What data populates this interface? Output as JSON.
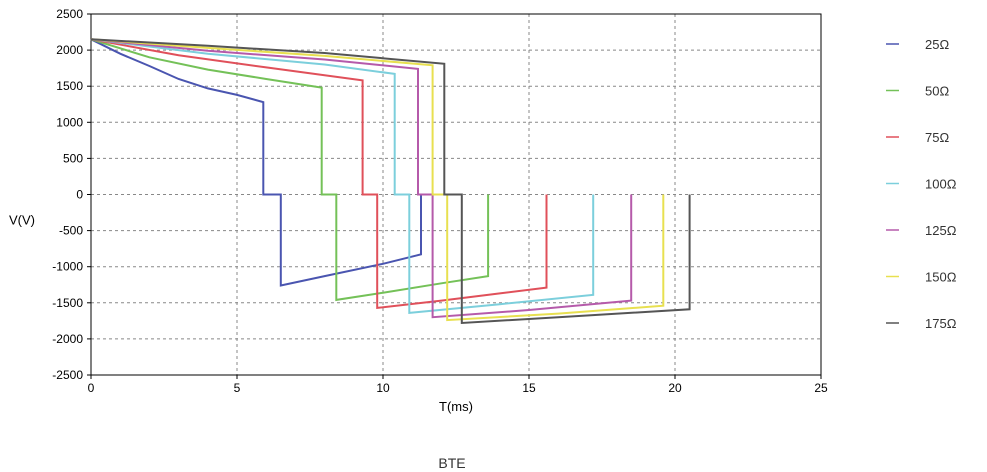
{
  "chart_data": {
    "type": "line",
    "title": "",
    "xlabel": "T(ms)",
    "ylabel": "V(V)",
    "caption": "BTE",
    "xlim": [
      0,
      25
    ],
    "ylim": [
      -2500,
      2500
    ],
    "xticks": [
      0,
      5,
      10,
      15,
      20,
      25
    ],
    "yticks": [
      2500,
      2000,
      1500,
      1000,
      500,
      0,
      -500,
      -1000,
      -1500,
      -2000,
      -2500
    ],
    "grid": true,
    "legend_position": "right",
    "series": [
      {
        "name": "25Ω",
        "color": "#4a55b0",
        "points": [
          [
            0,
            2150
          ],
          [
            1,
            1950
          ],
          [
            2,
            1780
          ],
          [
            3,
            1600
          ],
          [
            4,
            1470
          ],
          [
            5,
            1380
          ],
          [
            5.9,
            1280
          ],
          [
            5.9,
            0
          ],
          [
            6.5,
            0
          ],
          [
            6.5,
            -1260
          ],
          [
            8,
            -1130
          ],
          [
            10,
            -960
          ],
          [
            11.3,
            -830
          ],
          [
            11.3,
            0
          ]
        ]
      },
      {
        "name": "50Ω",
        "color": "#74c158",
        "points": [
          [
            0,
            2150
          ],
          [
            2,
            1900
          ],
          [
            4,
            1730
          ],
          [
            6,
            1600
          ],
          [
            7.9,
            1480
          ],
          [
            7.9,
            0
          ],
          [
            8.4,
            0
          ],
          [
            8.4,
            -1460
          ],
          [
            10,
            -1360
          ],
          [
            12,
            -1230
          ],
          [
            13.6,
            -1130
          ],
          [
            13.6,
            0
          ]
        ]
      },
      {
        "name": "75Ω",
        "color": "#e0505a",
        "points": [
          [
            0,
            2150
          ],
          [
            3,
            1930
          ],
          [
            6,
            1760
          ],
          [
            9.3,
            1580
          ],
          [
            9.3,
            0
          ],
          [
            9.8,
            0
          ],
          [
            9.8,
            -1570
          ],
          [
            12,
            -1470
          ],
          [
            14,
            -1370
          ],
          [
            15.6,
            -1290
          ],
          [
            15.6,
            0
          ]
        ]
      },
      {
        "name": "100Ω",
        "color": "#7ccfdc",
        "points": [
          [
            0,
            2150
          ],
          [
            4,
            1950
          ],
          [
            8,
            1800
          ],
          [
            10.4,
            1670
          ],
          [
            10.4,
            0
          ],
          [
            10.9,
            0
          ],
          [
            10.9,
            -1640
          ],
          [
            14,
            -1520
          ],
          [
            17.2,
            -1390
          ],
          [
            17.2,
            0
          ]
        ]
      },
      {
        "name": "125Ω",
        "color": "#b55aaa",
        "points": [
          [
            0,
            2150
          ],
          [
            4,
            1990
          ],
          [
            8,
            1870
          ],
          [
            11.2,
            1740
          ],
          [
            11.2,
            0
          ],
          [
            11.7,
            0
          ],
          [
            11.7,
            -1700
          ],
          [
            15,
            -1600
          ],
          [
            18.5,
            -1470
          ],
          [
            18.5,
            0
          ]
        ]
      },
      {
        "name": "150Ω",
        "color": "#e8e050",
        "points": [
          [
            0,
            2150
          ],
          [
            4,
            2030
          ],
          [
            8,
            1920
          ],
          [
            11.7,
            1790
          ],
          [
            11.7,
            0
          ],
          [
            12.2,
            0
          ],
          [
            12.2,
            -1740
          ],
          [
            16,
            -1650
          ],
          [
            19.6,
            -1540
          ],
          [
            19.6,
            0
          ]
        ]
      },
      {
        "name": "175Ω",
        "color": "#555555",
        "points": [
          [
            0,
            2150
          ],
          [
            4,
            2060
          ],
          [
            8,
            1960
          ],
          [
            12.1,
            1810
          ],
          [
            12.1,
            0
          ],
          [
            12.7,
            0
          ],
          [
            12.7,
            -1780
          ],
          [
            16,
            -1700
          ],
          [
            20.5,
            -1590
          ],
          [
            20.5,
            0
          ]
        ]
      }
    ]
  }
}
